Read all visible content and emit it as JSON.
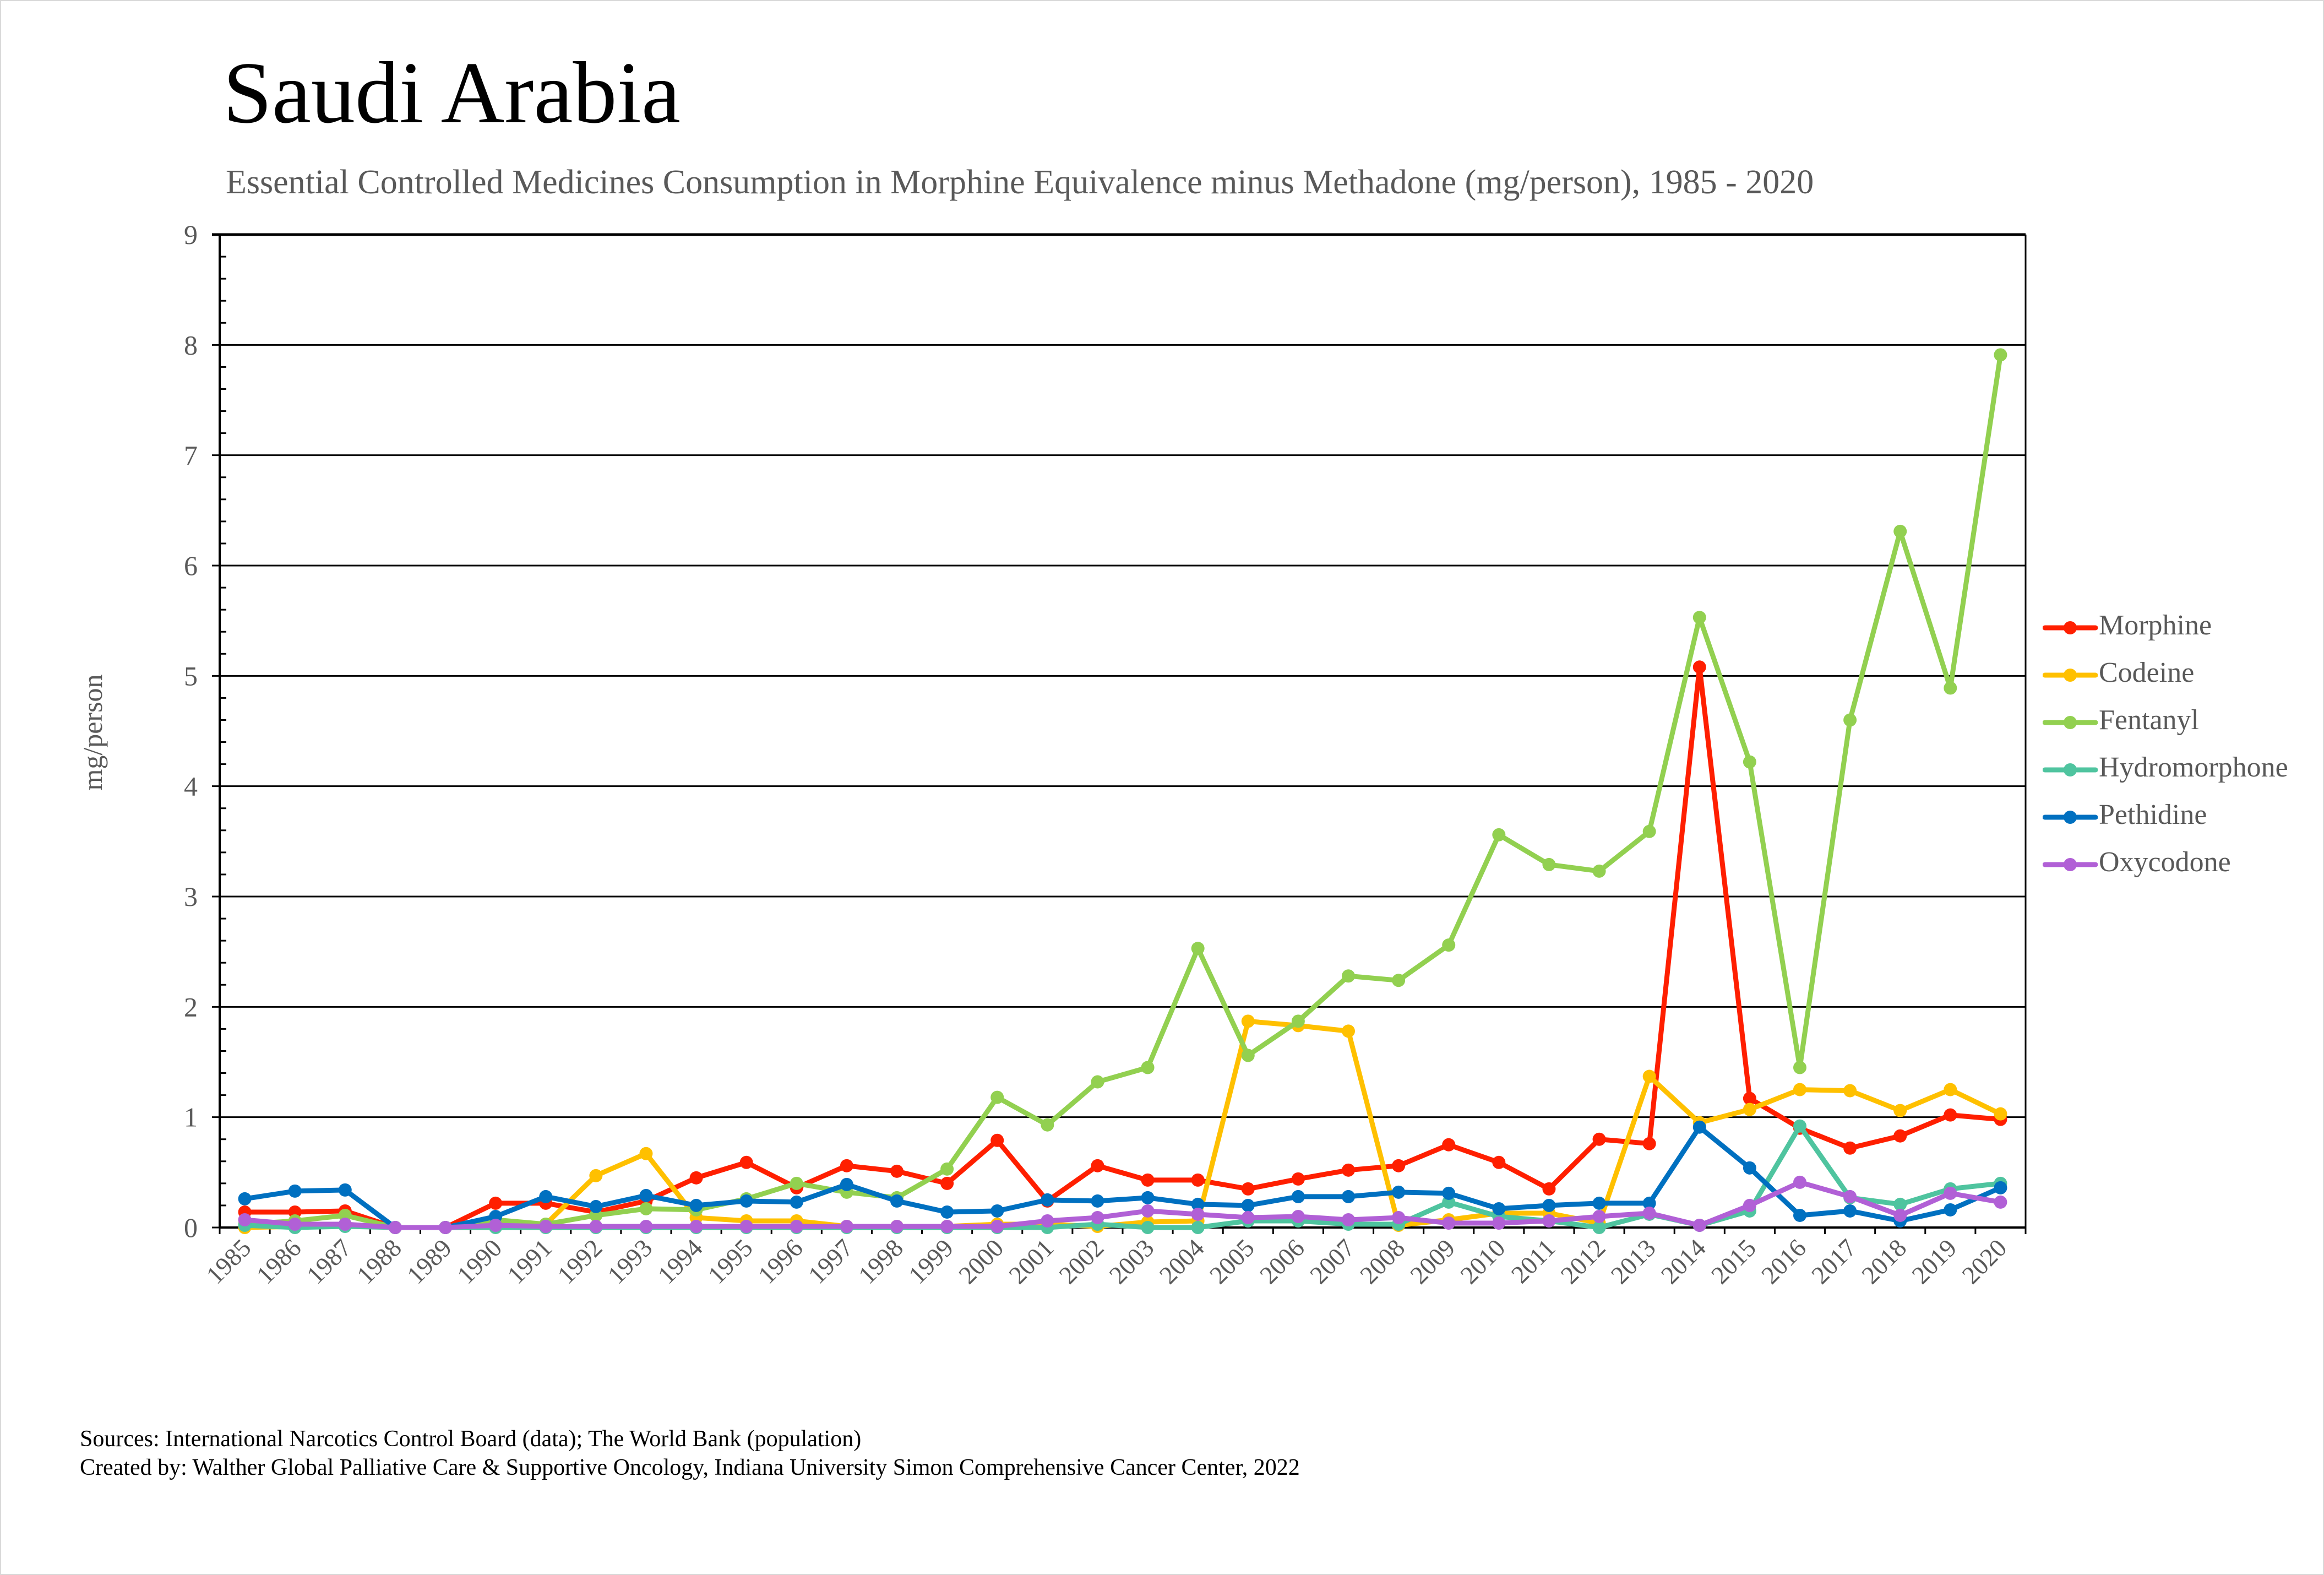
{
  "header": {
    "title": "Saudi Arabia",
    "subtitle": "Essential Controlled Medicines Consumption in Morphine Equivalence minus Methadone (mg/person), 1985 - 2020"
  },
  "footer": {
    "sources": "Sources: International Narcotics Control Board (data); The World Bank (population)",
    "created_by": "Created by: Walther Global Palliative Care & Supportive Oncology, Indiana University Simon Comprehensive Cancer Center, 2022"
  },
  "chart_data": {
    "type": "line",
    "title": "Saudi Arabia",
    "subtitle": "Essential Controlled Medicines Consumption in Morphine Equivalence minus Methadone (mg/person), 1985 - 2020",
    "xlabel": "",
    "ylabel": "mg/person",
    "ylim": [
      0,
      9
    ],
    "yticks": [
      0,
      1,
      2,
      3,
      4,
      5,
      6,
      7,
      8,
      9
    ],
    "y_minor_step": 0.2,
    "grid": true,
    "legend_position": "right",
    "x": [
      "1985",
      "1986",
      "1987",
      "1988",
      "1989",
      "1990",
      "1991",
      "1992",
      "1993",
      "1994",
      "1995",
      "1996",
      "1997",
      "1998",
      "1999",
      "2000",
      "2001",
      "2002",
      "2003",
      "2004",
      "2005",
      "2006",
      "2007",
      "2008",
      "2009",
      "2010",
      "2011",
      "2012",
      "2013",
      "2014",
      "2015",
      "2016",
      "2017",
      "2018",
      "2019",
      "2020"
    ],
    "series": [
      {
        "name": "Morphine",
        "color": "#ff1f00",
        "values": [
          0.14,
          0.14,
          0.15,
          0,
          0,
          0.22,
          0.22,
          0.14,
          0.24,
          0.45,
          0.59,
          0.36,
          0.56,
          0.51,
          0.4,
          0.79,
          0.24,
          0.56,
          0.43,
          0.43,
          0.35,
          0.44,
          0.52,
          0.56,
          0.75,
          0.59,
          0.35,
          0.8,
          0.76,
          5.08,
          1.17,
          0.9,
          0.72,
          0.83,
          1.02,
          0.98
        ]
      },
      {
        "name": "Codeine",
        "color": "#ffc000",
        "values": [
          0,
          0.01,
          0.02,
          0,
          0,
          0.02,
          0.03,
          0.47,
          0.67,
          0.09,
          0.06,
          0.06,
          0.01,
          0.01,
          0.01,
          0.03,
          0.03,
          0.01,
          0.05,
          0.06,
          1.87,
          1.83,
          1.78,
          0.02,
          0.07,
          0.13,
          0.13,
          0.04,
          1.37,
          0.95,
          1.07,
          1.25,
          1.24,
          1.06,
          1.25,
          1.03
        ]
      },
      {
        "name": "Fentanyl",
        "color": "#92d050",
        "values": [
          0.03,
          0.06,
          0.11,
          0,
          0,
          0.07,
          0.03,
          0.11,
          0.17,
          0.16,
          0.26,
          0.4,
          0.32,
          0.27,
          0.53,
          1.18,
          0.93,
          1.32,
          1.45,
          2.53,
          1.56,
          1.87,
          2.28,
          2.24,
          2.56,
          3.56,
          3.29,
          3.23,
          3.59,
          5.53,
          4.22,
          1.45,
          4.6,
          6.31,
          4.89,
          7.91
        ]
      },
      {
        "name": "Hydromorphone",
        "color": "#4fc49f",
        "values": [
          0.02,
          0,
          0.01,
          0,
          0,
          0,
          0,
          0,
          0,
          0,
          0,
          0,
          0,
          0,
          0,
          0,
          0,
          0.03,
          0,
          0,
          0.06,
          0.06,
          0.03,
          0.03,
          0.23,
          0.1,
          0.06,
          0,
          0.12,
          0.02,
          0.15,
          0.92,
          0.27,
          0.21,
          0.35,
          0.4
        ]
      },
      {
        "name": "Pethidine",
        "color": "#0070c0",
        "values": [
          0.26,
          0.33,
          0.34,
          0,
          0,
          0.1,
          0.28,
          0.19,
          0.29,
          0.2,
          0.24,
          0.23,
          0.39,
          0.24,
          0.14,
          0.15,
          0.25,
          0.24,
          0.27,
          0.21,
          0.2,
          0.28,
          0.28,
          0.32,
          0.31,
          0.17,
          0.2,
          0.22,
          0.22,
          0.91,
          0.54,
          0.11,
          0.15,
          0.06,
          0.16,
          0.36
        ]
      },
      {
        "name": "Oxycodone",
        "color": "#b160d6",
        "values": [
          0.07,
          0.03,
          0.03,
          0,
          0,
          0.02,
          0.01,
          0.01,
          0.01,
          0.01,
          0.01,
          0.01,
          0.01,
          0.01,
          0.01,
          0.01,
          0.06,
          0.09,
          0.15,
          0.12,
          0.09,
          0.1,
          0.07,
          0.09,
          0.04,
          0.04,
          0.06,
          0.1,
          0.13,
          0.02,
          0.2,
          0.41,
          0.28,
          0.11,
          0.31,
          0.23
        ]
      }
    ]
  }
}
